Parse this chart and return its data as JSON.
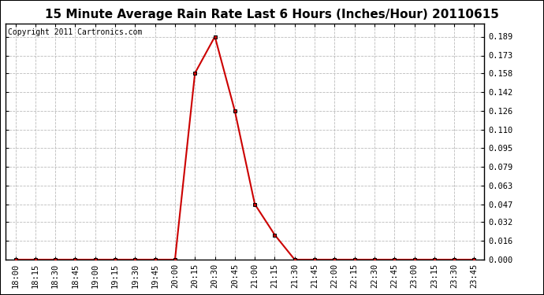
{
  "title": "15 Minute Average Rain Rate Last 6 Hours (Inches/Hour) 20110615",
  "copyright": "Copyright 2011 Cartronics.com",
  "background_color": "#ffffff",
  "plot_background": "#ffffff",
  "line_color": "#cc0000",
  "marker_color": "#cc0000",
  "grid_color": "#bbbbbb",
  "x_labels": [
    "18:00",
    "18:15",
    "18:30",
    "18:45",
    "19:00",
    "19:15",
    "19:30",
    "19:45",
    "20:00",
    "20:15",
    "20:30",
    "20:45",
    "21:00",
    "21:15",
    "21:30",
    "21:45",
    "22:00",
    "22:15",
    "22:30",
    "22:45",
    "23:00",
    "23:15",
    "23:30",
    "23:45"
  ],
  "y_values": [
    0.0,
    0.0,
    0.0,
    0.0,
    0.0,
    0.0,
    0.0,
    0.0,
    0.0,
    0.158,
    0.189,
    0.126,
    0.047,
    0.021,
    0.0,
    0.0,
    0.0,
    0.0,
    0.0,
    0.0,
    0.0,
    0.0,
    0.0,
    0.0
  ],
  "y_ticks": [
    0.0,
    0.016,
    0.032,
    0.047,
    0.063,
    0.079,
    0.095,
    0.11,
    0.126,
    0.142,
    0.158,
    0.173,
    0.189
  ],
  "ylim": [
    0.0,
    0.2
  ],
  "title_fontsize": 11,
  "tick_fontsize": 7.5,
  "copyright_fontsize": 7
}
